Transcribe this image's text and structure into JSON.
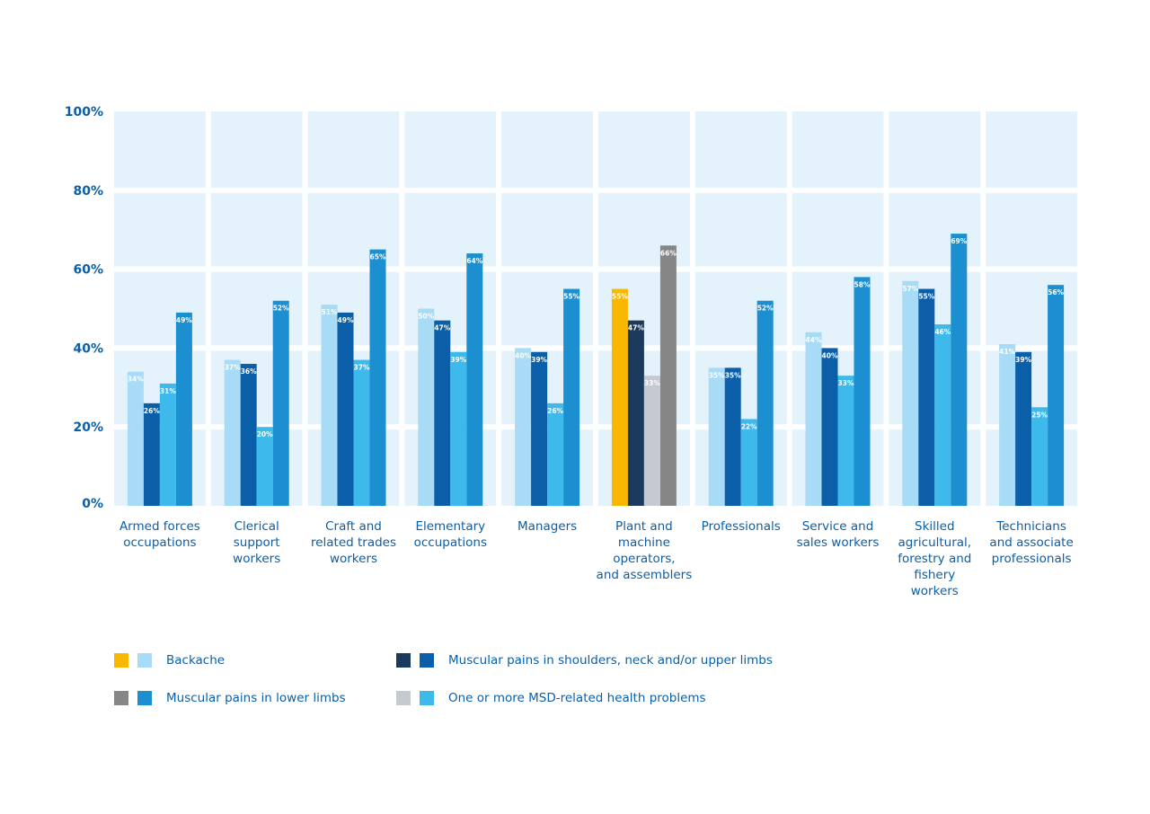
{
  "chart_data": {
    "type": "bar",
    "title": "",
    "xlabel": "",
    "ylabel": "",
    "ylim": [
      0,
      100
    ],
    "yticks": [
      "0%",
      "20%",
      "40%",
      "60%",
      "80%",
      "100%"
    ],
    "categories": [
      [
        "Armed forces",
        "occupations"
      ],
      [
        "Clerical",
        "support",
        "workers"
      ],
      [
        "Craft and",
        "related trades",
        "workers"
      ],
      [
        "Elementary",
        "occupations"
      ],
      [
        "Managers"
      ],
      [
        "Plant and",
        "machine",
        "operators,",
        "and assemblers"
      ],
      [
        "Professionals"
      ],
      [
        "Service and",
        "sales workers"
      ],
      [
        "Skilled",
        "agricultural,",
        "forestry and",
        "fishery",
        "workers"
      ],
      [
        "Technicians",
        "and associate",
        "professionals"
      ]
    ],
    "series": [
      {
        "name": "Backache",
        "values": [
          34,
          37,
          51,
          50,
          40,
          55,
          35,
          44,
          57,
          41
        ],
        "labels": [
          "34%",
          "37%",
          "51%",
          "50%",
          "40%",
          "55%",
          "35%",
          "44%",
          "57%",
          "41%"
        ]
      },
      {
        "name": "Muscular pains in shoulders, neck and/or upper limbs",
        "values": [
          26,
          36,
          49,
          47,
          39,
          47,
          35,
          40,
          55,
          39
        ],
        "labels": [
          "26%",
          "36%",
          "49%",
          "47%",
          "39%",
          "47%",
          "35%",
          "40%",
          "55%",
          "39%"
        ]
      },
      {
        "name": "One or more MSD-related health problems",
        "values": [
          31,
          20,
          37,
          39,
          26,
          33,
          22,
          33,
          46,
          25
        ],
        "labels": [
          "31%",
          "20%",
          "37%",
          "39%",
          "26%",
          "33%",
          "22%",
          "33%",
          "46%",
          "25%"
        ]
      },
      {
        "name": "Muscular pains in lower limbs",
        "values": [
          49,
          52,
          65,
          64,
          55,
          66,
          52,
          58,
          69,
          56
        ],
        "labels": [
          "49%",
          "52%",
          "65%",
          "64%",
          "55%",
          "66%",
          "52%",
          "58%",
          "69%",
          "56%"
        ]
      }
    ],
    "highlight_index": 5,
    "colors": {
      "normal": [
        "#a8dbf5",
        "#0b5ea8",
        "#3eb9ec",
        "#1b8fd0"
      ],
      "highlight": [
        "#f9b800",
        "#1b3a5c",
        "#c7c9d2",
        "#868686"
      ],
      "panel": "#e3f2fb",
      "text": "#0b5ea8"
    },
    "legend": [
      {
        "label": "Backache",
        "colors": [
          "#f9b800",
          "#a8dbf5"
        ]
      },
      {
        "label": "Muscular pains in shoulders, neck and/or upper limbs",
        "colors": [
          "#1b3a5c",
          "#0b5ea8"
        ]
      },
      {
        "label": "Muscular pains in lower limbs",
        "colors": [
          "#868686",
          "#1b8fd0"
        ]
      },
      {
        "label": "One or more MSD-related health problems",
        "colors": [
          "#c7c9d2",
          "#3eb9ec"
        ]
      }
    ]
  }
}
